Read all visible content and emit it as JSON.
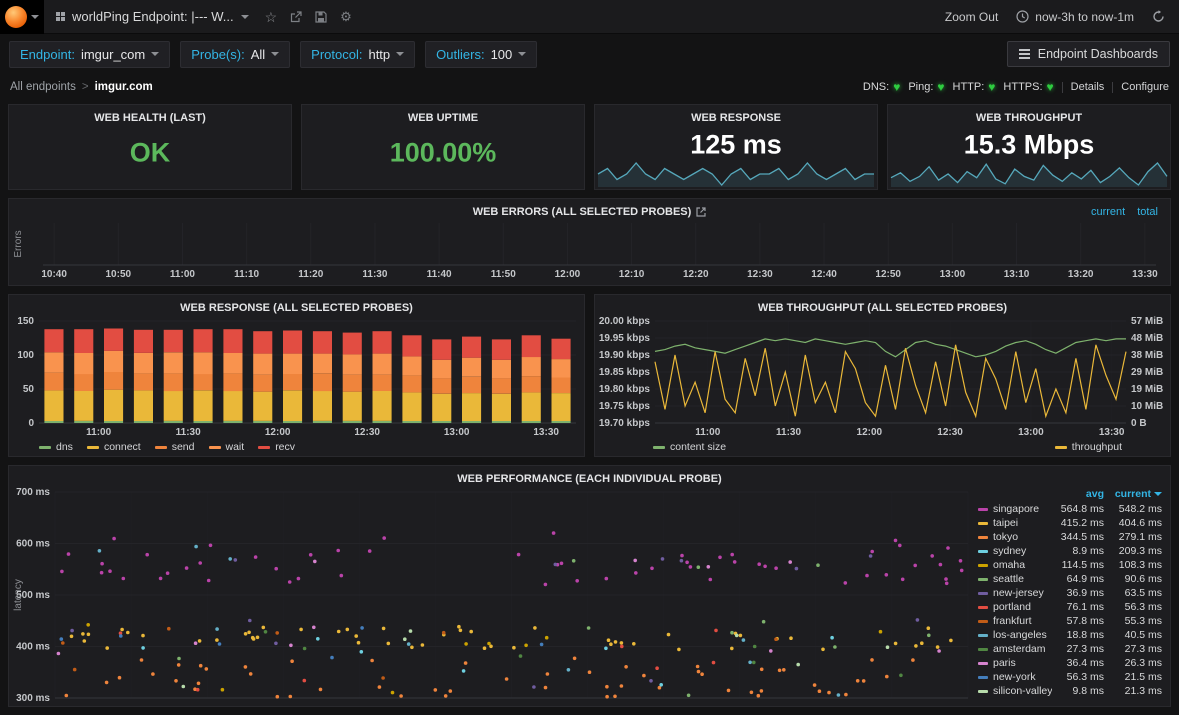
{
  "icons": {
    "heart": "♥",
    "star": "☆",
    "gear": "⚙"
  },
  "colors": {
    "accent": "#33b5e5",
    "spark": "#56a8bb",
    "green": "#5cb85c"
  },
  "navbar": {
    "title": "worldPing Endpoint: |--- W...",
    "zoom_out_label": "Zoom Out",
    "time_range": "now-3h to now-1m"
  },
  "filters": {
    "endpoint": {
      "label": "Endpoint:",
      "value": "imgur_com"
    },
    "probes": {
      "label": "Probe(s):",
      "value": "All"
    },
    "protocol": {
      "label": "Protocol:",
      "value": "http"
    },
    "outliers": {
      "label": "Outliers:",
      "value": "100"
    },
    "dashboards_button": "Endpoint Dashboards"
  },
  "breadcrumb": {
    "parent": "All endpoints",
    "separator": ">",
    "current": "imgur.com"
  },
  "status_bar": {
    "checks": [
      {
        "label": "DNS:"
      },
      {
        "label": "Ping:"
      },
      {
        "label": "HTTP:"
      },
      {
        "label": "HTTPS:"
      }
    ],
    "links": [
      "Details",
      "Configure"
    ]
  },
  "stats": [
    {
      "title": "WEB HEALTH (LAST)",
      "value": "OK",
      "color": "#5cb85c"
    },
    {
      "title": "WEB UPTIME",
      "value": "100.00%",
      "color": "#5cb85c"
    },
    {
      "title": "WEB RESPONSE",
      "value": "125 ms",
      "color": "#ffffff",
      "sparkline": [
        125,
        126,
        124,
        125,
        127,
        125,
        124,
        126,
        125,
        124,
        125,
        126,
        125,
        123,
        125,
        126,
        124,
        125,
        125,
        126,
        124,
        125,
        127,
        125,
        124,
        125,
        126,
        124,
        125,
        125
      ]
    },
    {
      "title": "WEB THROUGHPUT",
      "value": "15.3 Mbps",
      "color": "#ffffff",
      "sparkline": [
        15.2,
        15.6,
        14.9,
        15.3,
        16.1,
        15.0,
        15.5,
        14.8,
        15.7,
        15.2,
        16.3,
        15.1,
        14.7,
        15.9,
        15.3,
        15.0,
        16.2,
        15.4,
        14.9,
        15.6,
        15.1,
        15.8,
        14.8,
        15.3,
        16.0,
        15.2,
        14.6,
        15.7,
        16.4,
        15.3
      ]
    }
  ],
  "chart_data": [
    {
      "id": "errors",
      "type": "line",
      "title": "WEB ERRORS (ALL SELECTED PROBES)",
      "ylabel": "Errors",
      "x_ticks": [
        "10:40",
        "10:50",
        "11:00",
        "11:10",
        "11:20",
        "11:30",
        "11:40",
        "11:50",
        "12:00",
        "12:10",
        "12:20",
        "12:30",
        "12:40",
        "12:50",
        "13:00",
        "13:10",
        "13:20",
        "13:30"
      ],
      "legend": [
        {
          "name": "current"
        },
        {
          "name": "total"
        }
      ],
      "series": []
    },
    {
      "id": "response",
      "type": "bar",
      "title": "WEB RESPONSE (ALL SELECTED PROBES)",
      "x_ticks": [
        "11:00",
        "11:30",
        "12:00",
        "12:30",
        "13:00",
        "13:30"
      ],
      "y_ticks": [
        0,
        50,
        100,
        150
      ],
      "ylim": [
        0,
        150
      ],
      "series": [
        {
          "name": "dns",
          "color": "#7eb26d",
          "values": [
            3,
            3,
            3,
            3,
            3,
            3,
            3,
            3,
            3,
            3,
            3,
            3,
            3,
            3,
            3,
            3,
            3,
            3
          ]
        },
        {
          "name": "connect",
          "color": "#eab839",
          "values": [
            45,
            44,
            46,
            45,
            44,
            45,
            44,
            43,
            45,
            44,
            43,
            44,
            42,
            40,
            41,
            40,
            42,
            41
          ]
        },
        {
          "name": "send",
          "color": "#ef843c",
          "values": [
            26,
            25,
            26,
            25,
            26,
            24,
            26,
            25,
            24,
            26,
            25,
            24,
            25,
            23,
            24,
            23,
            24,
            23
          ]
        },
        {
          "name": "wait",
          "color": "#f9934e",
          "values": [
            30,
            31,
            31,
            30,
            31,
            32,
            30,
            31,
            30,
            29,
            30,
            31,
            28,
            27,
            28,
            27,
            28,
            27
          ]
        },
        {
          "name": "recv",
          "color": "#e24d42",
          "values": [
            34,
            35,
            33,
            34,
            33,
            34,
            35,
            33,
            34,
            33,
            32,
            33,
            31,
            30,
            31,
            30,
            32,
            30
          ]
        }
      ]
    },
    {
      "id": "throughput",
      "type": "line",
      "title": "WEB THROUGHPUT (ALL SELECTED PROBES)",
      "x_ticks": [
        "11:00",
        "11:30",
        "12:00",
        "12:30",
        "13:00",
        "13:30"
      ],
      "y_left": {
        "ticks": [
          "20.00 kbps",
          "19.95 kbps",
          "19.90 kbps",
          "19.85 kbps",
          "19.80 kbps",
          "19.75 kbps",
          "19.70 kbps"
        ],
        "range": [
          19.7,
          20.0
        ]
      },
      "y_right": {
        "ticks": [
          "57 MiB",
          "48 MiB",
          "38 MiB",
          "29 MiB",
          "19 MiB",
          "10 MiB",
          "0 B"
        ],
        "range": [
          0,
          57
        ]
      },
      "series": [
        {
          "name": "content size",
          "color": "#7eb26d",
          "axis": "right",
          "values": [
            40,
            41,
            43,
            44,
            42,
            41,
            40,
            39,
            41,
            43,
            45,
            47,
            46,
            47,
            46,
            45,
            47,
            46,
            45,
            44,
            45,
            46,
            45,
            40,
            37,
            41,
            45,
            46,
            44,
            43,
            41,
            39,
            37,
            38,
            40,
            43,
            45,
            46,
            44,
            41,
            39,
            42,
            45,
            46,
            47,
            46,
            47,
            47
          ]
        },
        {
          "name": "throughput",
          "color": "#eab839",
          "axis": "left",
          "values": [
            19.88,
            19.74,
            19.9,
            19.75,
            19.82,
            19.73,
            19.91,
            19.77,
            19.73,
            19.89,
            19.78,
            19.92,
            19.75,
            19.85,
            19.72,
            19.9,
            19.76,
            19.82,
            19.73,
            19.91,
            19.86,
            19.76,
            19.72,
            19.87,
            19.74,
            19.92,
            19.81,
            19.73,
            19.88,
            19.75,
            19.93,
            19.79,
            19.72,
            19.89,
            19.83,
            19.74,
            19.91,
            19.76,
            19.86,
            19.72,
            19.8,
            19.73,
            19.89,
            19.74,
            19.93,
            19.84,
            19.77,
            19.91
          ]
        }
      ]
    },
    {
      "id": "performance",
      "type": "scatter",
      "title": "WEB PERFORMANCE (EACH INDIVIDUAL PROBE)",
      "ylabel": "latency",
      "y_ticks": [
        "300 ms",
        "400 ms",
        "500 ms",
        "600 ms",
        "700 ms"
      ],
      "ylim": [
        300,
        700
      ],
      "legend_header": {
        "avg": "avg",
        "current": "current"
      },
      "series": [
        {
          "name": "singapore",
          "color": "#ba43a9",
          "avg": "564.8 ms",
          "current": "548.2 ms",
          "scatter": [
            {
              "min": 520,
              "max": 588,
              "count": 50
            },
            {
              "min": 590,
              "max": 632,
              "count": 7
            }
          ]
        },
        {
          "name": "taipei",
          "color": "#eab839",
          "avg": "415.2 ms",
          "current": "404.6 ms",
          "scatter": [
            {
              "min": 392,
              "max": 442,
              "count": 52
            }
          ]
        },
        {
          "name": "tokyo",
          "color": "#ef843c",
          "avg": "344.5 ms",
          "current": "279.1 ms",
          "scatter": [
            {
              "min": 302,
              "max": 378,
              "count": 55
            }
          ]
        },
        {
          "name": "sydney",
          "color": "#6ed0e0",
          "avg": "8.9 ms",
          "current": "209.3 ms",
          "scatter": [
            {
              "min": 305,
              "max": 460,
              "count": 7
            }
          ]
        },
        {
          "name": "omaha",
          "color": "#cca300",
          "avg": "114.5 ms",
          "current": "108.3 ms",
          "scatter": [
            {
              "min": 305,
              "max": 470,
              "count": 8
            }
          ]
        },
        {
          "name": "seattle",
          "color": "#7eb26d",
          "avg": "64.9 ms",
          "current": "90.6 ms",
          "scatter": [
            {
              "min": 305,
              "max": 455,
              "count": 7
            },
            {
              "min": 545,
              "max": 580,
              "count": 3
            }
          ]
        },
        {
          "name": "new-jersey",
          "color": "#705da0",
          "avg": "36.9 ms",
          "current": "63.5 ms",
          "scatter": [
            {
              "min": 310,
              "max": 460,
              "count": 6
            },
            {
              "min": 548,
              "max": 578,
              "count": 6
            }
          ]
        },
        {
          "name": "portland",
          "color": "#e24d42",
          "avg": "76.1 ms",
          "current": "56.3 ms",
          "scatter": [
            {
              "min": 305,
              "max": 450,
              "count": 7
            }
          ]
        },
        {
          "name": "frankfurt",
          "color": "#c15c17",
          "avg": "57.8 ms",
          "current": "55.3 ms",
          "scatter": [
            {
              "min": 308,
              "max": 455,
              "count": 7
            }
          ]
        },
        {
          "name": "los-angeles",
          "color": "#64b0c8",
          "avg": "18.8 ms",
          "current": "40.5 ms",
          "scatter": [
            {
              "min": 305,
              "max": 450,
              "count": 6
            },
            {
              "min": 560,
              "max": 600,
              "count": 3
            }
          ]
        },
        {
          "name": "amsterdam",
          "color": "#508642",
          "avg": "27.3 ms",
          "current": "27.3 ms",
          "scatter": [
            {
              "min": 305,
              "max": 440,
              "count": 6
            }
          ]
        },
        {
          "name": "paris",
          "color": "#d683ce",
          "avg": "36.4 ms",
          "current": "26.3 ms",
          "scatter": [
            {
              "min": 308,
              "max": 445,
              "count": 6
            },
            {
              "min": 552,
              "max": 572,
              "count": 4
            }
          ]
        },
        {
          "name": "new-york",
          "color": "#447ebc",
          "avg": "56.3 ms",
          "current": "21.5 ms",
          "scatter": [
            {
              "min": 305,
              "max": 440,
              "count": 6
            }
          ]
        },
        {
          "name": "silicon-valley",
          "color": "#b7dbab",
          "avg": "9.8 ms",
          "current": "21.3 ms",
          "scatter": [
            {
              "min": 305,
              "max": 430,
              "count": 6
            }
          ]
        }
      ]
    }
  ]
}
